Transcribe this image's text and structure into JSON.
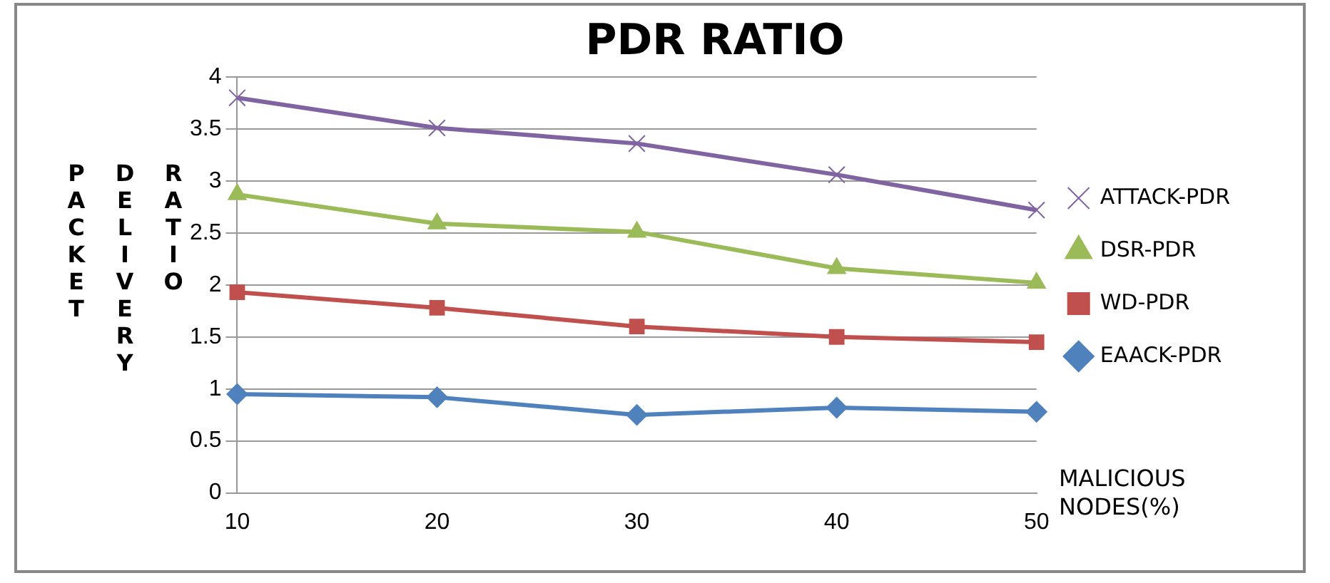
{
  "chart_data": {
    "type": "line",
    "title": "PDR RATIO",
    "xlabel": "MALICIOUS NODES(%)",
    "ylabel": "PACKET DELIVERY RATIO",
    "categories": [
      "10",
      "20",
      "30",
      "40",
      "50"
    ],
    "ylim": [
      0,
      4
    ],
    "yticks": [
      0,
      0.5,
      1,
      1.5,
      2,
      2.5,
      3,
      3.5,
      4
    ],
    "grid": "y",
    "legend": "right",
    "series": [
      {
        "name": "ATTACK-PDR",
        "color": "#8064a2",
        "marker": "cross",
        "values": [
          3.8,
          3.51,
          3.36,
          3.06,
          2.72
        ]
      },
      {
        "name": "DSR-PDR",
        "color": "#9bbb59",
        "marker": "triangle",
        "values": [
          2.87,
          2.59,
          2.51,
          2.16,
          2.02
        ]
      },
      {
        "name": "WD-PDR",
        "color": "#c0504d",
        "marker": "square",
        "values": [
          1.93,
          1.78,
          1.6,
          1.5,
          1.45
        ]
      },
      {
        "name": "EAACK-PDR",
        "color": "#4f81bd",
        "marker": "diamond",
        "values": [
          0.95,
          0.92,
          0.75,
          0.82,
          0.78
        ]
      }
    ]
  }
}
